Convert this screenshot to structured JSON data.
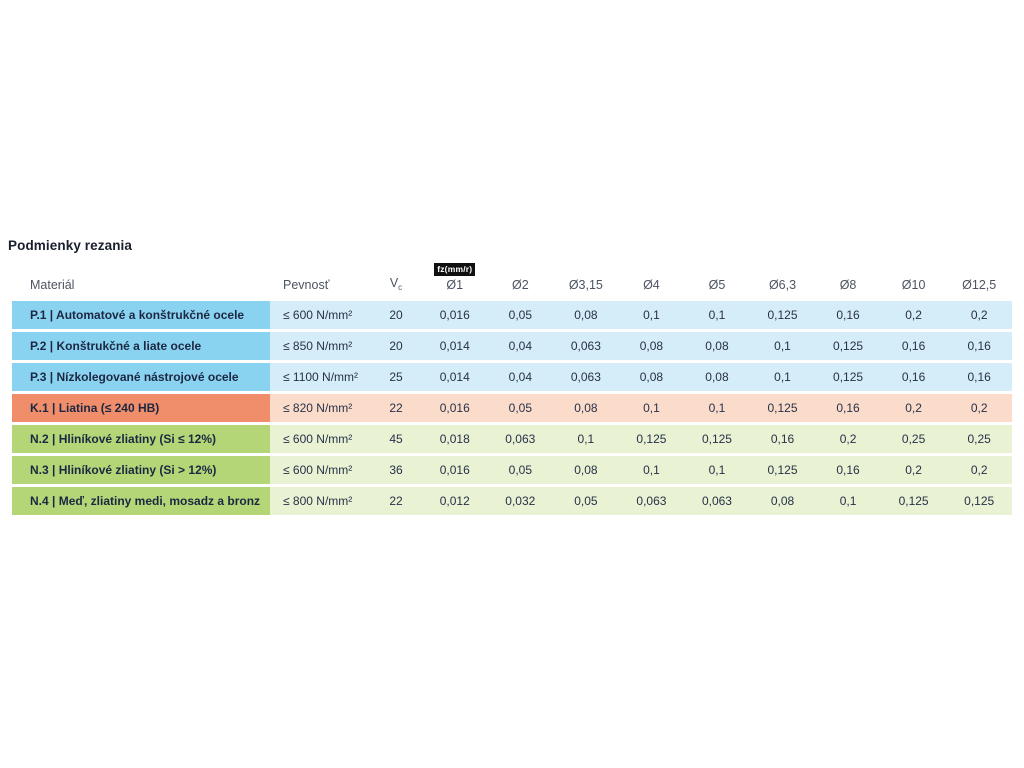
{
  "page": {
    "title": "Podmienky rezania"
  },
  "table": {
    "headers": {
      "material": "Materiál",
      "strength": "Pevnosť",
      "vc_base": "V",
      "vc_sub": "c",
      "feed_unit": "fz(mm/r)",
      "diameters": [
        "Ø1",
        "Ø2",
        "Ø3,15",
        "Ø4",
        "Ø5",
        "Ø6,3",
        "Ø8",
        "Ø10",
        "Ø12,5"
      ]
    },
    "rows": [
      {
        "group": "steel",
        "material": "P.1 | Automatové a konštrukčné ocele",
        "strength": "≤ 600 N/mm²",
        "vc": "20",
        "feeds": [
          "0,016",
          "0,05",
          "0,08",
          "0,1",
          "0,1",
          "0,125",
          "0,16",
          "0,2",
          "0,2"
        ]
      },
      {
        "group": "steel",
        "material": "P.2 | Konštrukčné a liate ocele",
        "strength": "≤ 850 N/mm²",
        "vc": "20",
        "feeds": [
          "0,014",
          "0,04",
          "0,063",
          "0,08",
          "0,08",
          "0,1",
          "0,125",
          "0,16",
          "0,16"
        ]
      },
      {
        "group": "steel",
        "material": "P.3 | Nízkolegované nástrojové ocele",
        "strength": "≤ 1100 N/mm²",
        "vc": "25",
        "feeds": [
          "0,014",
          "0,04",
          "0,063",
          "0,08",
          "0,08",
          "0,1",
          "0,125",
          "0,16",
          "0,16"
        ]
      },
      {
        "group": "cast_iron",
        "material": "K.1 | Liatina (≤ 240 HB)",
        "strength": "≤ 820 N/mm²",
        "vc": "22",
        "feeds": [
          "0,016",
          "0,05",
          "0,08",
          "0,1",
          "0,1",
          "0,125",
          "0,16",
          "0,2",
          "0,2"
        ]
      },
      {
        "group": "non_ferrous",
        "material": "N.2 | Hliníkové zliatiny (Si ≤ 12%)",
        "strength": "≤ 600 N/mm²",
        "vc": "45",
        "feeds": [
          "0,018",
          "0,063",
          "0,1",
          "0,125",
          "0,125",
          "0,16",
          "0,2",
          "0,25",
          "0,25"
        ]
      },
      {
        "group": "non_ferrous",
        "material": "N.3 | Hliníkové zliatiny (Si > 12%)",
        "strength": "≤ 600 N/mm²",
        "vc": "36",
        "feeds": [
          "0,016",
          "0,05",
          "0,08",
          "0,1",
          "0,1",
          "0,125",
          "0,16",
          "0,2",
          "0,2"
        ]
      },
      {
        "group": "non_ferrous",
        "material": "N.4 | Meď, zliatiny medi, mosadz a bronz",
        "strength": "≤ 800 N/mm²",
        "vc": "22",
        "feeds": [
          "0,012",
          "0,032",
          "0,05",
          "0,063",
          "0,063",
          "0,08",
          "0,1",
          "0,125",
          "0,125"
        ]
      }
    ],
    "colors": {
      "steel_strong": "#89D3F1",
      "steel_light": "#D5EDF8",
      "cast_iron_strong": "#F08D6B",
      "cast_iron_light": "#FBDCCA",
      "non_ferrous_strong": "#B4D677",
      "non_ferrous_light": "#E9F2D3"
    }
  }
}
